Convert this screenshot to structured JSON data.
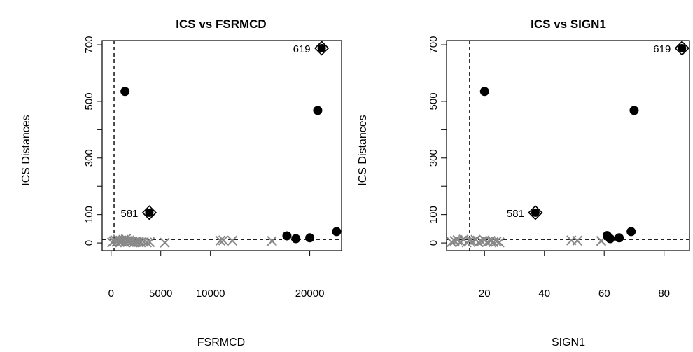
{
  "chart_data": [
    {
      "type": "scatter",
      "title": "ICS vs FSRMCD",
      "xlabel": "FSRMCD",
      "ylabel": "ICS Distances",
      "xlim": [
        -900,
        23200
      ],
      "ylim": [
        -27,
        715
      ],
      "xticks": [
        0,
        5000,
        10000,
        20000
      ],
      "xtick_labels": [
        "0",
        "5000",
        "10000",
        "20000"
      ],
      "yticks": [
        0,
        100,
        300,
        500,
        700
      ],
      "yminor": [
        200,
        400,
        600
      ],
      "ytick_labels": [
        "0",
        "100",
        "300",
        "500",
        "700"
      ],
      "vline": 300,
      "hline": 12,
      "series": [
        {
          "marker": "x",
          "color": "#888888",
          "points": [
            [
              100,
              2
            ],
            [
              250,
              6
            ],
            [
              400,
              10
            ],
            [
              550,
              4
            ],
            [
              700,
              12
            ],
            [
              850,
              3
            ],
            [
              950,
              8
            ],
            [
              1100,
              5
            ],
            [
              1250,
              11
            ],
            [
              1400,
              2
            ],
            [
              1500,
              14
            ],
            [
              1600,
              7
            ],
            [
              1700,
              4
            ],
            [
              1850,
              9
            ],
            [
              2000,
              3
            ],
            [
              2150,
              6
            ],
            [
              2300,
              2
            ],
            [
              2450,
              5
            ],
            [
              2600,
              3
            ],
            [
              2800,
              4
            ],
            [
              3000,
              2
            ],
            [
              3300,
              3
            ],
            [
              3600,
              2
            ],
            [
              3900,
              3
            ],
            [
              5400,
              1
            ],
            [
              11000,
              8
            ],
            [
              11300,
              9
            ],
            [
              12200,
              8
            ],
            [
              16200,
              7
            ]
          ]
        },
        {
          "marker": "filled-circle",
          "color": "#000000",
          "points": [
            [
              1400,
              535
            ],
            [
              17700,
              25
            ],
            [
              18600,
              15
            ],
            [
              20000,
              18
            ],
            [
              20800,
              468
            ],
            [
              22700,
              40
            ]
          ]
        },
        {
          "marker": "diamond",
          "color": "#000000",
          "points": [
            [
              3850,
              107
            ],
            [
              21200,
              688
            ]
          ]
        }
      ],
      "labels": [
        {
          "text": "581",
          "x": 3850,
          "y": 107
        },
        {
          "text": "619",
          "x": 21200,
          "y": 688
        }
      ]
    },
    {
      "type": "scatter",
      "title": "ICS vs SIGN1",
      "xlabel": "SIGN1",
      "ylabel": "ICS Distances",
      "xlim": [
        7.3,
        88.5
      ],
      "ylim": [
        -27,
        715
      ],
      "xticks": [
        20,
        40,
        60,
        80
      ],
      "xtick_labels": [
        "20",
        "40",
        "60",
        "80"
      ],
      "yticks": [
        0,
        100,
        300,
        500,
        700
      ],
      "yminor": [
        200,
        400,
        600
      ],
      "ytick_labels": [
        "0",
        "100",
        "300",
        "500",
        "700"
      ],
      "vline": 15,
      "hline": 12,
      "series": [
        {
          "marker": "x",
          "color": "#888888",
          "points": [
            [
              9,
              3
            ],
            [
              10,
              7
            ],
            [
              11,
              10
            ],
            [
              12,
              4
            ],
            [
              13,
              12
            ],
            [
              14,
              2
            ],
            [
              15,
              8
            ],
            [
              16,
              5
            ],
            [
              17,
              11
            ],
            [
              18,
              3
            ],
            [
              19,
              6
            ],
            [
              20,
              9
            ],
            [
              21,
              4
            ],
            [
              22,
              7
            ],
            [
              23,
              3
            ],
            [
              24,
              5
            ],
            [
              25,
              2
            ],
            [
              49,
              9
            ],
            [
              51,
              8
            ],
            [
              59,
              7
            ]
          ]
        },
        {
          "marker": "filled-circle",
          "color": "#000000",
          "points": [
            [
              20,
              535
            ],
            [
              61,
              26
            ],
            [
              62,
              15
            ],
            [
              65,
              18
            ],
            [
              69,
              40
            ],
            [
              70,
              468
            ]
          ]
        },
        {
          "marker": "diamond",
          "color": "#000000",
          "points": [
            [
              37,
              107
            ],
            [
              86,
              688
            ]
          ]
        }
      ],
      "labels": [
        {
          "text": "581",
          "x": 37,
          "y": 107
        },
        {
          "text": "619",
          "x": 86,
          "y": 688
        }
      ]
    }
  ]
}
